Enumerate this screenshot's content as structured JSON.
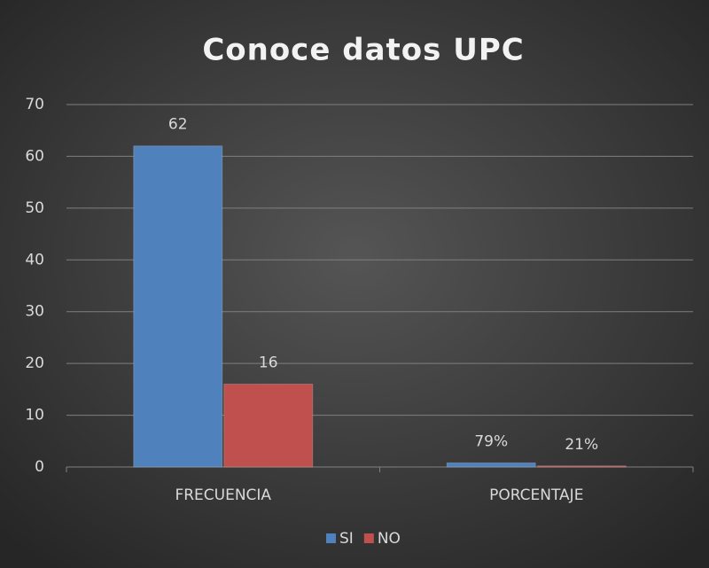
{
  "chart_data": {
    "type": "bar",
    "title": "Conoce datos UPC",
    "categories": [
      "FRECUENCIA",
      "PORCENTAJE"
    ],
    "series": [
      {
        "name": "SI",
        "color": "#4f81bd",
        "values": [
          62,
          0.79
        ],
        "value_labels": [
          "62",
          "79%"
        ]
      },
      {
        "name": "NO",
        "color": "#c0504d",
        "values": [
          16,
          0.21
        ],
        "value_labels": [
          "16",
          "21%"
        ]
      }
    ],
    "ylim": [
      0,
      70
    ],
    "yticks": [
      0,
      10,
      20,
      30,
      40,
      50,
      60,
      70
    ],
    "grid": true,
    "legend": "bottom"
  }
}
